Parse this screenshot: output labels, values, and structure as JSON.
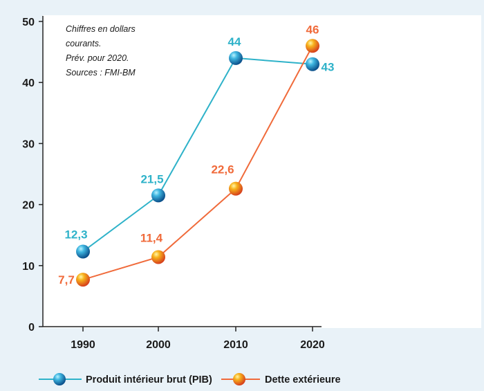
{
  "note": [
    "Chiffres en dollars",
    "courants.",
    "Prév. pour 2020.",
    "Sources : FMI-BM"
  ],
  "colors": {
    "background": "#e9f2f8",
    "plot_background": "#ffffff",
    "pib": "#2eb2c9",
    "dette": "#f06a3a",
    "axis": "#222222"
  },
  "chart_data": {
    "type": "line",
    "x": [
      "1990",
      "2000",
      "2010",
      "2020"
    ],
    "ylim": [
      0,
      50
    ],
    "yticks": [
      0,
      10,
      20,
      30,
      40,
      50
    ],
    "grid": false,
    "legend_position": "bottom",
    "series": [
      {
        "name": "Produit intérieur brut (PIB)",
        "color": "#2eb2c9",
        "marker": "blue-ball-icon",
        "values": [
          12.3,
          21.5,
          44,
          43
        ],
        "labels": [
          "12,3",
          "21,5",
          "44",
          "43"
        ]
      },
      {
        "name": "Dette extérieure",
        "color": "#f06a3a",
        "marker": "orange-ball-icon",
        "values": [
          7.7,
          11.4,
          22.6,
          46
        ],
        "labels": [
          "7,7",
          "11,4",
          "22,6",
          "46"
        ]
      }
    ]
  }
}
